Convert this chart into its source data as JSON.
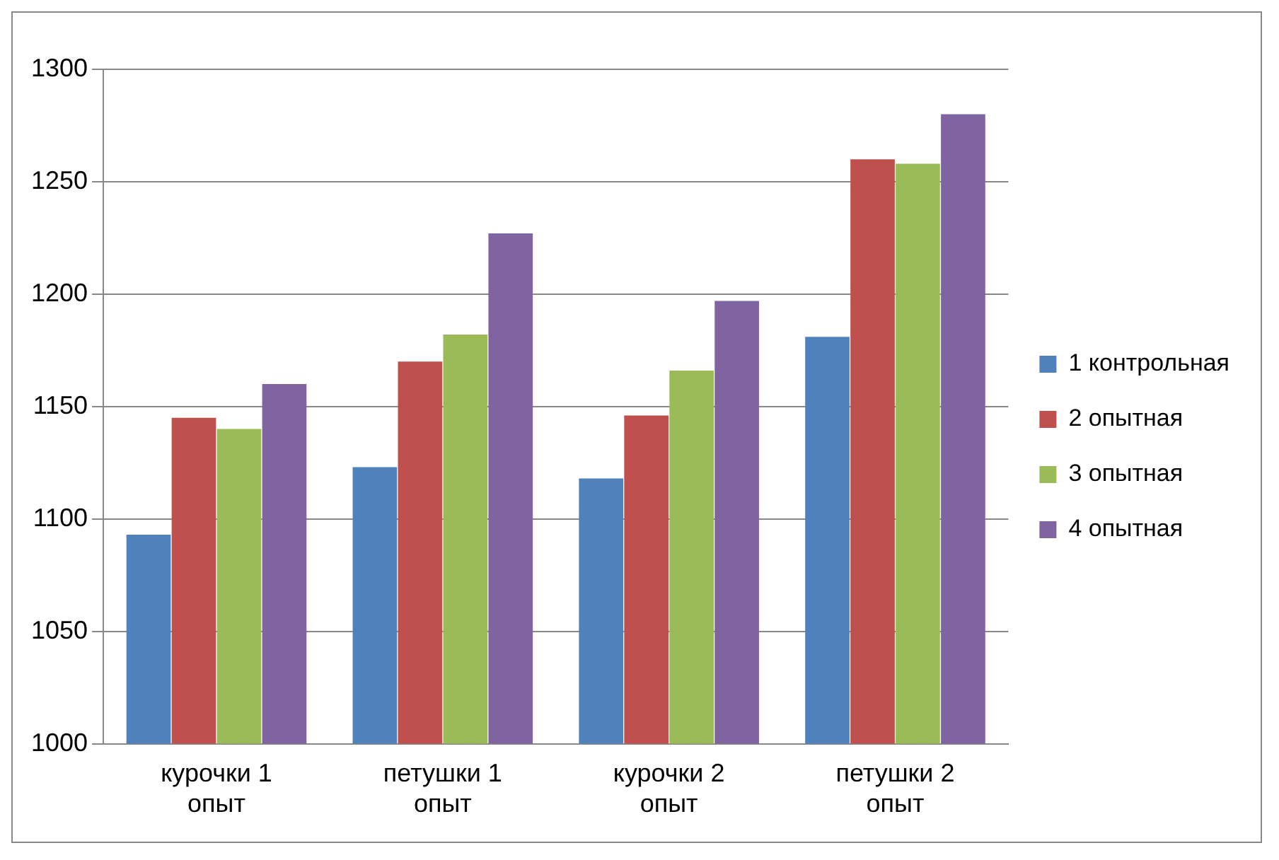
{
  "chart_data": {
    "type": "bar",
    "categories": [
      "курочки 1 опыт",
      "петушки 1 опыт",
      "курочки 2 опыт",
      "петушки 2 опыт"
    ],
    "series": [
      {
        "name": "1 контрольная",
        "color": "#4f81bd",
        "values": [
          1093,
          1123,
          1118,
          1181
        ]
      },
      {
        "name": "2 опытная",
        "color": "#c0504d",
        "values": [
          1145,
          1170,
          1146,
          1260
        ]
      },
      {
        "name": "3 опытная",
        "color": "#9bbb59",
        "values": [
          1140,
          1182,
          1166,
          1258
        ]
      },
      {
        "name": "4 опытная",
        "color": "#8064a2",
        "values": [
          1160,
          1227,
          1197,
          1280
        ]
      }
    ],
    "ylim": [
      1000,
      1300
    ],
    "yticks": [
      1000,
      1050,
      1100,
      1150,
      1200,
      1250,
      1300
    ],
    "grid": "y",
    "legend": "right"
  }
}
